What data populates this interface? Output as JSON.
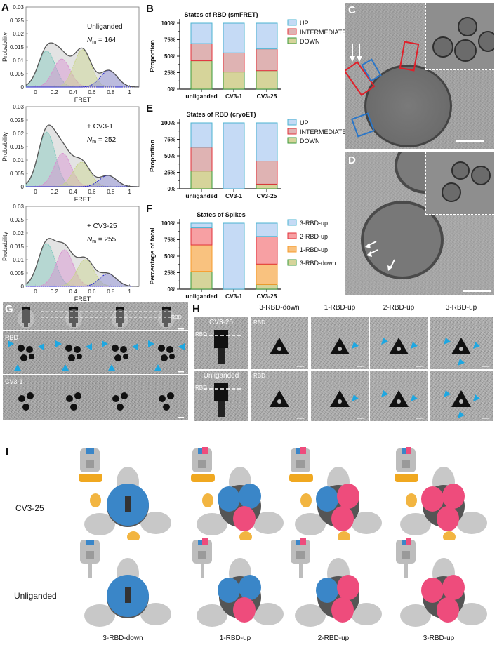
{
  "panels": {
    "A": {
      "letter": "A",
      "plots": [
        {
          "condition": "Unliganded",
          "nm_label": "N",
          "nm_sub": "m",
          "nm_value": "= 164"
        },
        {
          "condition": "+ CV3-1",
          "nm_label": "N",
          "nm_sub": "m",
          "nm_value": "= 252"
        },
        {
          "condition": "+ CV3-25",
          "nm_label": "N",
          "nm_sub": "m",
          "nm_value": "= 255"
        }
      ],
      "ylabel": "Probability",
      "xlabel": "FRET",
      "yticks": [
        "0",
        "0.005",
        "0.01",
        "0.015",
        "0.02",
        "0.025",
        "0.03"
      ],
      "xticks": [
        "0",
        "0.2",
        "0.4",
        "0.6",
        "0.8",
        "1"
      ]
    },
    "B": {
      "letter": "B",
      "title": "States of RBD (smFRET)",
      "ylabel": "Proportion"
    },
    "E": {
      "letter": "E",
      "title": "States of RBD (cryoET)",
      "ylabel": "Proportion"
    },
    "F": {
      "letter": "F",
      "title": "States of Spikes",
      "ylabel": "Percentage of total"
    },
    "C": {
      "letter": "C"
    },
    "D": {
      "letter": "D"
    },
    "G": {
      "letter": "G",
      "labels": {
        "cv31": "CV3-1",
        "rbd": "RBD",
        "rbd2": "RBD",
        "cv31b": "CV3-1"
      }
    },
    "H": {
      "letter": "H",
      "columns": [
        "3-RBD-down",
        "1-RBD-up",
        "2-RBD-up",
        "3-RBD-up"
      ],
      "row_labels": [
        "CV3-25",
        "Unliganded"
      ],
      "rbd": "RBD"
    },
    "I": {
      "letter": "I",
      "row_labels": [
        "CV3-25",
        "Unliganded"
      ],
      "columns": [
        "3-RBD-down",
        "1-RBD-up",
        "2-RBD-up",
        "3-RBD-up"
      ]
    }
  },
  "bar_yticks": [
    "0%",
    "25%",
    "50%",
    "75%",
    "100%"
  ],
  "categories": [
    "unliganded",
    "CV3-1",
    "CV3-25"
  ],
  "legend_rbd": [
    "UP",
    "INTERMEDIATE",
    "DOWN"
  ],
  "legend_spikes": [
    "3-RBD-up",
    "2-RBD-up",
    "1-RBD-up",
    "3-RBD-down"
  ],
  "colors": {
    "up_fill": "#c5daf5",
    "up_edge": "#4bb3d1",
    "inter_fill": "#dfb3b3",
    "inter_edge": "#e0313a",
    "down_fill": "#d6d49a",
    "down_edge": "#3a9a3a",
    "two_up_fill": "#f7a0a3",
    "one_up_fill": "#f9c27f",
    "one_up_edge": "#f59b2b",
    "arrow_blue": "#1ea7e1",
    "rbd_blue": "#3a86c8",
    "rbd_pink": "#ee4c7c",
    "fab_orange": "#f0a820"
  },
  "chart_data": [
    {
      "type": "area",
      "title": "Unliganded",
      "annotation": "Nm = 164",
      "xlabel": "FRET",
      "ylabel": "Probability",
      "xlim": [
        -0.1,
        1.1
      ],
      "ylim": [
        0,
        0.03
      ],
      "gaussians": [
        {
          "center": 0.12,
          "peak": 0.0135,
          "color": "#7fc7bd"
        },
        {
          "center": 0.28,
          "peak": 0.0105,
          "color": "#d88fd0"
        },
        {
          "center": 0.5,
          "peak": 0.014,
          "color": "#c9d58b"
        },
        {
          "center": 0.78,
          "peak": 0.0062,
          "color": "#8a8ad8"
        }
      ],
      "total_peak": 0.0148
    },
    {
      "type": "area",
      "title": "+ CV3-1",
      "annotation": "Nm = 252",
      "xlabel": "FRET",
      "ylabel": "Probability",
      "xlim": [
        -0.1,
        1.1
      ],
      "ylim": [
        0,
        0.03
      ],
      "gaussians": [
        {
          "center": 0.12,
          "peak": 0.0205,
          "color": "#7fc7bd"
        },
        {
          "center": 0.29,
          "peak": 0.0125,
          "color": "#d88fd0"
        },
        {
          "center": 0.49,
          "peak": 0.0092,
          "color": "#c9d58b"
        },
        {
          "center": 0.77,
          "peak": 0.0042,
          "color": "#8a8ad8"
        }
      ],
      "total_peak": 0.0222
    },
    {
      "type": "area",
      "title": "+ CV3-25",
      "annotation": "Nm = 255",
      "xlabel": "FRET",
      "ylabel": "Probability",
      "xlim": [
        -0.1,
        1.1
      ],
      "ylim": [
        0,
        0.03
      ],
      "gaussians": [
        {
          "center": 0.12,
          "peak": 0.016,
          "color": "#7fc7bd"
        },
        {
          "center": 0.31,
          "peak": 0.0137,
          "color": "#d88fd0"
        },
        {
          "center": 0.53,
          "peak": 0.01,
          "color": "#c9d58b"
        },
        {
          "center": 0.77,
          "peak": 0.0047,
          "color": "#8a8ad8"
        }
      ],
      "total_peak": 0.0172
    },
    {
      "type": "bar",
      "stacked": true,
      "title": "States of RBD (smFRET)",
      "ylabel": "Proportion",
      "categories": [
        "unliganded",
        "CV3-1",
        "CV3-25"
      ],
      "series": [
        {
          "name": "DOWN",
          "values": [
            43,
            26,
            28
          ]
        },
        {
          "name": "INTERMEDIATE",
          "values": [
            26,
            29,
            33
          ]
        },
        {
          "name": "UP",
          "values": [
            31,
            45,
            39
          ]
        }
      ],
      "ylim": [
        0,
        100
      ]
    },
    {
      "type": "bar",
      "stacked": true,
      "title": "States of RBD (cryoET)",
      "ylabel": "Proportion",
      "categories": [
        "unliganded",
        "CV3-1",
        "CV3-25"
      ],
      "series": [
        {
          "name": "DOWN",
          "values": [
            27,
            0,
            7
          ]
        },
        {
          "name": "INTERMEDIATE",
          "values": [
            36,
            0,
            35
          ]
        },
        {
          "name": "UP",
          "values": [
            37,
            100,
            58
          ]
        }
      ],
      "ylim": [
        0,
        100
      ]
    },
    {
      "type": "bar",
      "stacked": true,
      "title": "States of Spikes",
      "ylabel": "Percentage of total",
      "categories": [
        "unliganded",
        "CV3-1",
        "CV3-25"
      ],
      "series": [
        {
          "name": "3-RBD-down",
          "values": [
            27,
            0,
            7
          ]
        },
        {
          "name": "1-RBD-up",
          "values": [
            40,
            0,
            31
          ]
        },
        {
          "name": "2-RBD-up",
          "values": [
            26,
            0,
            42
          ]
        },
        {
          "name": "3-RBD-up",
          "values": [
            7,
            100,
            20
          ]
        }
      ],
      "ylim": [
        0,
        100
      ]
    }
  ]
}
